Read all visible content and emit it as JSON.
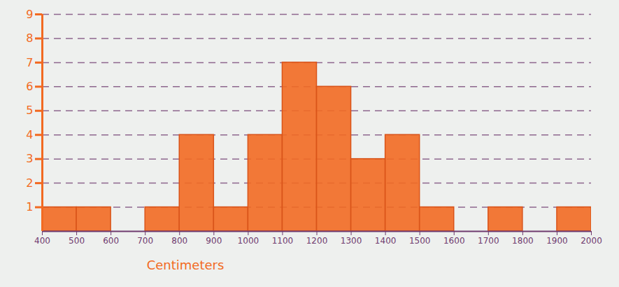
{
  "chart_data": {
    "type": "histogram",
    "x_label": "Centimeters",
    "bins": [
      400,
      500,
      600,
      700,
      800,
      900,
      1000,
      1100,
      1200,
      1300,
      1400,
      1500,
      1600,
      1700,
      1800,
      1900,
      2000
    ],
    "values": [
      1,
      1,
      0,
      1,
      4,
      1,
      4,
      7,
      6,
      3,
      4,
      1,
      0,
      1,
      0,
      1
    ],
    "color": "#f26a22",
    "xlim": [
      400,
      2000
    ],
    "ylim": [
      0,
      9
    ],
    "xticks": [
      400,
      500,
      600,
      700,
      800,
      900,
      1000,
      1100,
      1200,
      1300,
      1400,
      1500,
      1600,
      1700,
      1800,
      1900,
      2000
    ],
    "yticks": [
      1,
      2,
      3,
      4,
      5,
      6,
      7,
      8,
      9
    ],
    "grid": true
  }
}
